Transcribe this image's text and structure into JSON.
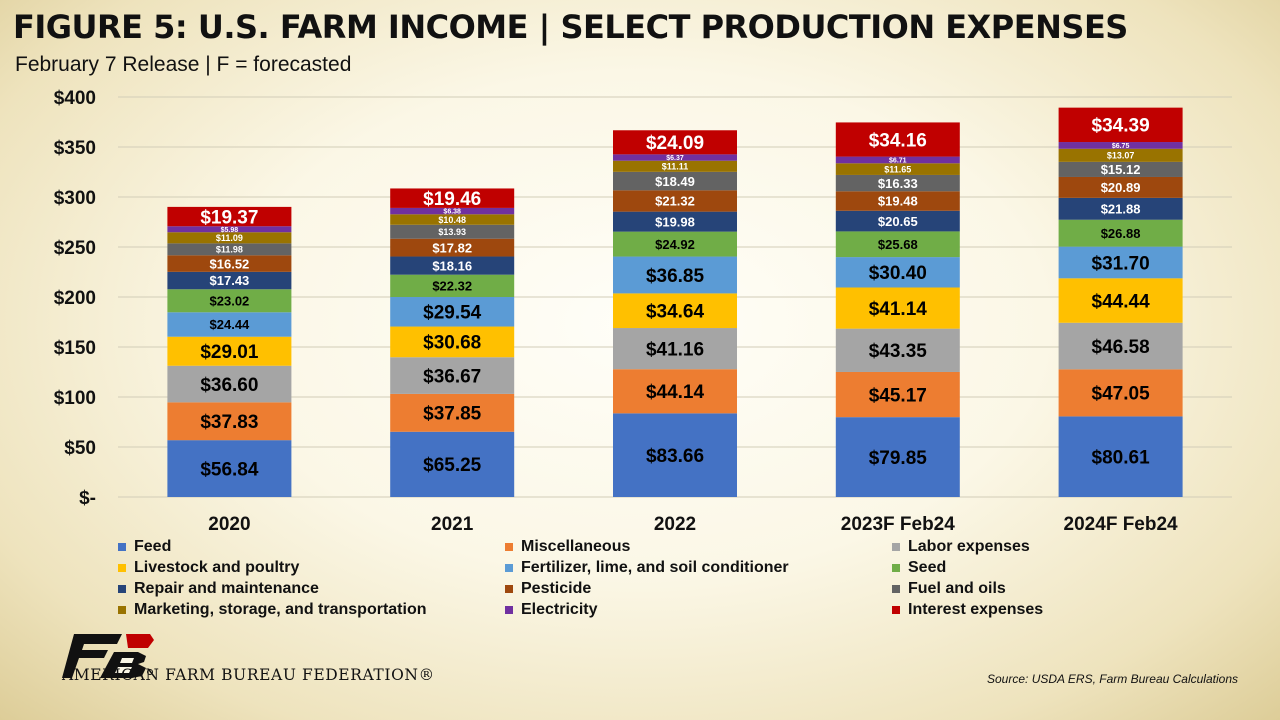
{
  "header": {
    "title": "FIGURE 5: U.S. FARM INCOME | SELECT PRODUCTION EXPENSES",
    "subtitle": "February 7 Release | F = forecasted"
  },
  "footer": {
    "org_name": "AMERICAN FARM BUREAU FEDERATION®",
    "source": "Source: USDA ERS, Farm Bureau Calculations"
  },
  "chart_data": {
    "type": "bar",
    "stacked": true,
    "categories": [
      "2020",
      "2021",
      "2022",
      "2023F Feb24",
      "2024F Feb24"
    ],
    "ylim": [
      0,
      400
    ],
    "yticks": [
      0,
      50,
      100,
      150,
      200,
      250,
      300,
      350,
      400
    ],
    "ytick_labels": [
      "$-",
      "$50",
      "$100",
      "$150",
      "$200",
      "$250",
      "$300",
      "$350",
      "$400"
    ],
    "grid": true,
    "legend_position": "bottom",
    "series": [
      {
        "name": "Feed",
        "color": "#4472c4",
        "label_color": "#000000",
        "values": [
          56.84,
          65.25,
          83.66,
          79.85,
          80.61
        ]
      },
      {
        "name": "Miscellaneous",
        "color": "#ed7d31",
        "label_color": "#000000",
        "values": [
          37.83,
          37.85,
          44.14,
          45.17,
          47.05
        ]
      },
      {
        "name": "Labor expenses",
        "color": "#a5a5a5",
        "label_color": "#000000",
        "values": [
          36.6,
          36.67,
          41.16,
          43.35,
          46.58
        ]
      },
      {
        "name": "Livestock and poultry",
        "color": "#ffc000",
        "label_color": "#000000",
        "values": [
          29.01,
          30.68,
          34.64,
          41.14,
          44.44
        ]
      },
      {
        "name": "Fertilizer, lime, and soil conditioner",
        "color": "#5b9bd5",
        "label_color": "#000000",
        "values": [
          24.44,
          29.54,
          36.85,
          30.4,
          31.7
        ]
      },
      {
        "name": "Seed",
        "color": "#70ad47",
        "label_color": "#000000",
        "values": [
          23.02,
          22.32,
          24.92,
          25.68,
          26.88
        ]
      },
      {
        "name": "Repair and maintenance",
        "color": "#264478",
        "label_color": "#ffffff",
        "values": [
          17.43,
          18.16,
          19.98,
          20.65,
          21.88
        ]
      },
      {
        "name": "Pesticide",
        "color": "#9e480e",
        "label_color": "#ffffff",
        "values": [
          16.52,
          17.82,
          21.32,
          19.48,
          20.89
        ]
      },
      {
        "name": "Fuel and oils",
        "color": "#636363",
        "label_color": "#ffffff",
        "values": [
          11.98,
          13.93,
          18.49,
          16.33,
          15.12
        ]
      },
      {
        "name": "Marketing, storage, and transportation",
        "color": "#997300",
        "label_color": "#ffffff",
        "values": [
          11.09,
          10.48,
          11.11,
          11.65,
          13.07
        ]
      },
      {
        "name": "Electricity",
        "color": "#7030a0",
        "label_color": "#ffffff",
        "values": [
          5.98,
          6.38,
          6.37,
          6.71,
          6.75
        ]
      },
      {
        "name": "Interest expenses",
        "color": "#c00000",
        "label_color": "#ffffff",
        "values": [
          19.37,
          19.46,
          24.09,
          34.16,
          34.39
        ]
      }
    ]
  }
}
